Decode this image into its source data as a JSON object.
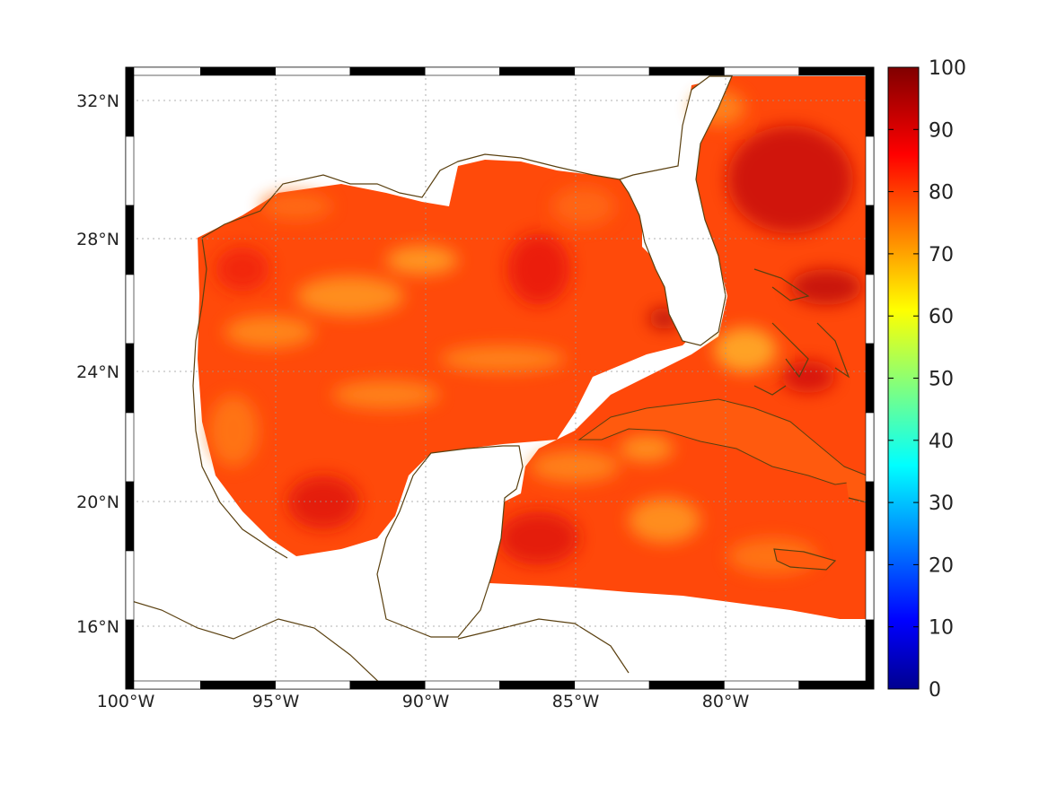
{
  "map": {
    "x_ticks": [
      {
        "lon": -100,
        "label": "100°W"
      },
      {
        "lon": -95,
        "label": "95°W"
      },
      {
        "lon": -90,
        "label": "90°W"
      },
      {
        "lon": -85,
        "label": "85°W"
      },
      {
        "lon": -80,
        "label": "80°W"
      }
    ],
    "y_ticks": [
      {
        "lat": 32,
        "label": "32°N"
      },
      {
        "lat": 28,
        "label": "28°N"
      },
      {
        "lat": 24,
        "label": "24°N"
      },
      {
        "lat": 20,
        "label": "20°N"
      },
      {
        "lat": 16,
        "label": "16°N"
      }
    ],
    "extent": {
      "lon": [
        -100,
        -75
      ],
      "lat": [
        14.4,
        33
      ]
    },
    "grid": "dotted",
    "coastline_color": "#5a4010",
    "background_color": "#ffffff"
  },
  "colorbar": {
    "range": [
      0,
      100
    ],
    "ticks": [
      "0",
      "10",
      "20",
      "30",
      "40",
      "50",
      "60",
      "70",
      "80",
      "90",
      "100"
    ],
    "colormap": "jet"
  },
  "field": {
    "dominant_range": [
      75,
      95
    ]
  }
}
